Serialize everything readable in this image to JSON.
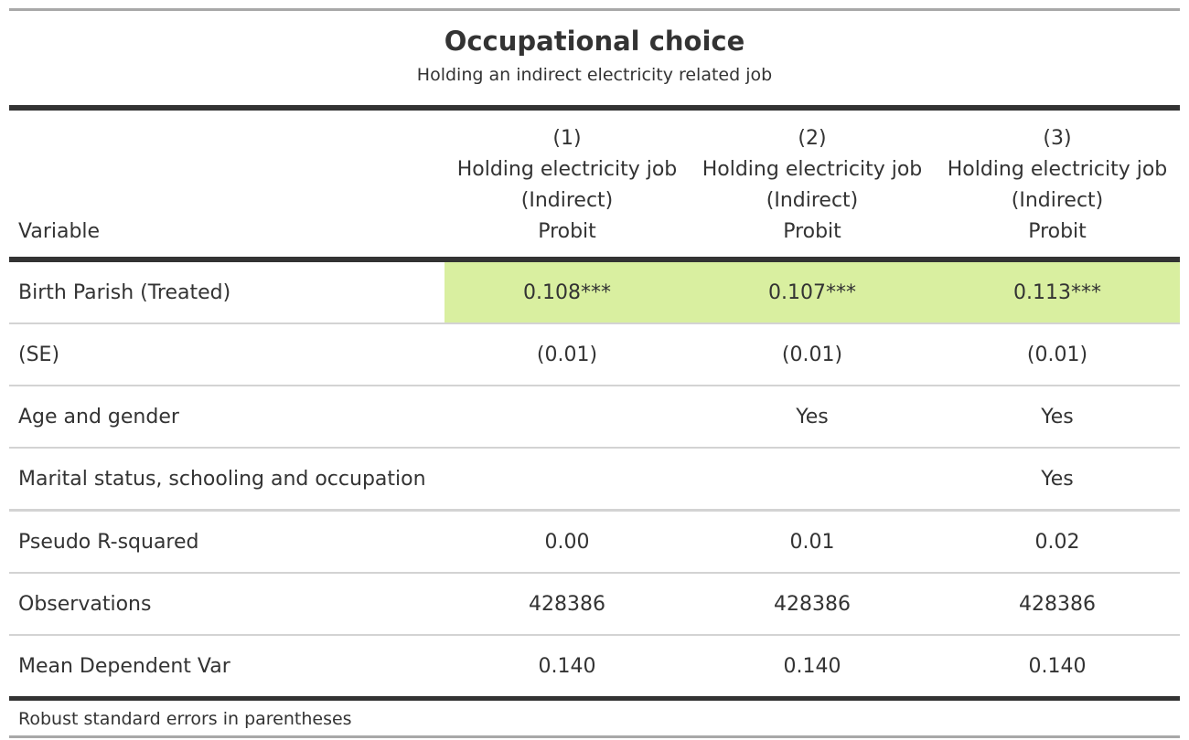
{
  "title": "Occupational choice",
  "subtitle": "Holding an indirect electricity related job",
  "header": {
    "variable_label": "Variable",
    "columns": [
      {
        "number": "(1)",
        "dependent": "Holding electricity job",
        "type": "(Indirect)",
        "model": "Probit"
      },
      {
        "number": "(2)",
        "dependent": "Holding electricity job",
        "type": "(Indirect)",
        "model": "Probit"
      },
      {
        "number": "(3)",
        "dependent": "Holding electricity job",
        "type": "(Indirect)",
        "model": "Probit"
      }
    ]
  },
  "rows": [
    {
      "label": "Birth Parish (Treated)",
      "values": [
        "0.108***",
        "0.107***",
        "0.113***"
      ]
    },
    {
      "label": "(SE)",
      "values": [
        "(0.01)",
        "(0.01)",
        "(0.01)"
      ]
    },
    {
      "label": "Age and gender",
      "values": [
        "",
        "Yes",
        "Yes"
      ]
    },
    {
      "label": "Marital status, schooling and occupation",
      "values": [
        "",
        "",
        "Yes"
      ]
    },
    {
      "label": "Pseudo R-squared",
      "values": [
        "0.00",
        "0.01",
        "0.02"
      ]
    },
    {
      "label": "Observations",
      "values": [
        "428386",
        "428386",
        "428386"
      ]
    },
    {
      "label": "Mean Dependent Var",
      "values": [
        "0.140",
        "0.140",
        "0.140"
      ]
    }
  ],
  "footnote": "Robust standard errors in parentheses",
  "colors": {
    "highlight": "#d9efa0",
    "rule_dark": "#333333",
    "rule_light": "#d3d3d3",
    "rule_outer": "#a8a8a8"
  }
}
